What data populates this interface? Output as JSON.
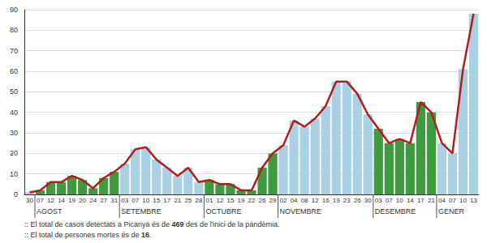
{
  "chart_data": {
    "type": "bar",
    "categories": [
      "30",
      "07",
      "12",
      "14",
      "19",
      "20",
      "24",
      "27",
      "31",
      "03",
      "07",
      "10",
      "15",
      "17",
      "21",
      "25",
      "28",
      "01",
      "12",
      "15",
      "19",
      "22",
      "26",
      "29",
      "02",
      "04",
      "08",
      "12",
      "16",
      "19",
      "23",
      "26",
      "30",
      "03",
      "07",
      "10",
      "14",
      "17",
      "21",
      "04",
      "07",
      "10",
      "13"
    ],
    "months": [
      null,
      "AGOST",
      "AGOST",
      "AGOST",
      "AGOST",
      "AGOST",
      "AGOST",
      "AGOST",
      "AGOST",
      "SETEMBRE",
      "SETEMBRE",
      "SETEMBRE",
      "SETEMBRE",
      "SETEMBRE",
      "SETEMBRE",
      "SETEMBRE",
      "SETEMBRE",
      "OCTUBRE",
      "OCTUBRE",
      "OCTUBRE",
      "OCTUBRE",
      "OCTUBRE",
      "OCTUBRE",
      "OCTUBRE",
      "NOVEMBRE",
      "NOVEMBRE",
      "NOVEMBRE",
      "NOVEMBRE",
      "NOVEMBRE",
      "NOVEMBRE",
      "NOVEMBRE",
      "NOVEMBRE",
      "NOVEMBRE",
      "DESEMBRE",
      "DESEMBRE",
      "DESEMBRE",
      "DESEMBRE",
      "DESEMBRE",
      "DESEMBRE",
      "GENER",
      "GENER",
      "GENER",
      "GENER"
    ],
    "series": [
      {
        "type": "bar",
        "values": [
          1,
          2,
          6,
          6,
          9,
          7,
          3,
          8,
          11,
          15,
          22,
          23,
          17,
          13,
          9,
          13,
          6,
          7,
          5,
          5,
          2,
          2,
          13,
          20,
          24,
          36,
          33,
          37,
          43,
          55,
          55,
          49,
          39,
          32,
          25,
          27,
          25,
          45,
          40,
          25,
          20,
          61,
          88
        ],
        "colors": [
          "#a9d0e3",
          "#3f9b3f",
          "#3f9b3f",
          "#3f9b3f",
          "#3f9b3f",
          "#3f9b3f",
          "#3f9b3f",
          "#3f9b3f",
          "#3f9b3f",
          "#a9d0e3",
          "#a9d0e3",
          "#a9d0e3",
          "#a9d0e3",
          "#a9d0e3",
          "#a9d0e3",
          "#a9d0e3",
          "#a9d0e3",
          "#3f9b3f",
          "#3f9b3f",
          "#3f9b3f",
          "#3f9b3f",
          "#3f9b3f",
          "#3f9b3f",
          "#3f9b3f",
          "#a9d0e3",
          "#a9d0e3",
          "#a9d0e3",
          "#a9d0e3",
          "#a9d0e3",
          "#a9d0e3",
          "#a9d0e3",
          "#a9d0e3",
          "#a9d0e3",
          "#3f9b3f",
          "#3f9b3f",
          "#3f9b3f",
          "#3f9b3f",
          "#3f9b3f",
          "#3f9b3f",
          "#a9d0e3",
          "#a9d0e3",
          "#a9d0e3",
          "#a9d0e3"
        ]
      },
      {
        "type": "line",
        "color": "#b01e1e",
        "values": [
          1,
          2,
          6,
          6,
          9,
          7,
          3,
          8,
          11,
          15,
          22,
          23,
          17,
          13,
          9,
          13,
          6,
          7,
          5,
          5,
          2,
          2,
          13,
          20,
          24,
          36,
          33,
          37,
          43,
          55,
          55,
          49,
          39,
          32,
          25,
          27,
          25,
          45,
          40,
          25,
          20,
          61,
          88
        ]
      }
    ],
    "ylim": [
      0,
      90
    ],
    "yticks": [
      0,
      10,
      20,
      30,
      40,
      50,
      60,
      70,
      80,
      90
    ],
    "grid": true,
    "annotations": [
      ":: El total de casos detectats a Picanya és de 469 des de l'inici de la pandèmia.",
      ":: El total de persones mortes és de 16."
    ]
  }
}
